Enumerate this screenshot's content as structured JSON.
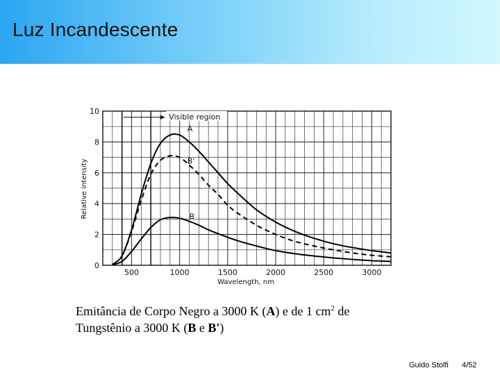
{
  "header": {
    "title": "Luz Incandescente",
    "gradient_colors": [
      "#2aa6f0",
      "#6fcaf8",
      "#b6ecfc",
      "#d2f7fd"
    ]
  },
  "chart_data": {
    "type": "line",
    "xlabel": "Wavelength, nm",
    "ylabel": "Relative intensity",
    "xlim": [
      200,
      3200
    ],
    "ylim": [
      0,
      10
    ],
    "x_ticks": [
      500,
      1000,
      1500,
      2000,
      2500,
      3000
    ],
    "x_tick_labels": [
      "500",
      "1000",
      "1500",
      "2000",
      "2500",
      "3000"
    ],
    "y_ticks": [
      0,
      2,
      4,
      6,
      8,
      10
    ],
    "y_tick_labels": [
      "0",
      "2",
      "4",
      "6",
      "8",
      "10"
    ],
    "grid": true,
    "annotation": {
      "label": "Visible region",
      "x_range": [
        400,
        700
      ],
      "y": 9.6
    },
    "series": [
      {
        "name": "A",
        "style": "solid",
        "label_at": [
          1080,
          8.7
        ],
        "x": [
          300,
          400,
          500,
          600,
          700,
          800,
          900,
          1000,
          1100,
          1200,
          1300,
          1400,
          1500,
          1600,
          1800,
          2000,
          2200,
          2400,
          2600,
          2800,
          3000,
          3200
        ],
        "y": [
          0.05,
          0.6,
          2.3,
          4.6,
          6.6,
          7.9,
          8.45,
          8.45,
          8.0,
          7.4,
          6.7,
          6.0,
          5.3,
          4.7,
          3.6,
          2.8,
          2.2,
          1.75,
          1.4,
          1.15,
          0.95,
          0.8
        ]
      },
      {
        "name": "B'",
        "style": "dashed",
        "label_at": [
          1080,
          6.6
        ],
        "x": [
          300,
          400,
          500,
          600,
          700,
          800,
          900,
          1000,
          1100,
          1200,
          1300,
          1400,
          1500,
          1600,
          1800,
          2000,
          2200,
          2400,
          2600,
          2800,
          3000,
          3200
        ],
        "y": [
          0.05,
          0.6,
          2.2,
          4.2,
          5.9,
          6.8,
          7.1,
          7.0,
          6.5,
          5.9,
          5.2,
          4.6,
          3.9,
          3.4,
          2.6,
          2.0,
          1.55,
          1.25,
          1.0,
          0.8,
          0.65,
          0.55
        ]
      },
      {
        "name": "B",
        "style": "solid",
        "label_at": [
          1100,
          3.0
        ],
        "x": [
          300,
          400,
          500,
          600,
          700,
          800,
          900,
          1000,
          1100,
          1200,
          1300,
          1400,
          1600,
          1800,
          2000,
          2200,
          2400,
          2600,
          2800,
          3000,
          3200
        ],
        "y": [
          0.02,
          0.25,
          0.9,
          1.7,
          2.45,
          2.95,
          3.1,
          3.05,
          2.85,
          2.6,
          2.3,
          2.05,
          1.6,
          1.25,
          0.95,
          0.75,
          0.6,
          0.48,
          0.38,
          0.3,
          0.25
        ]
      }
    ]
  },
  "caption": {
    "line1_pre": "Emitância de Corpo Negro a 3000 K (",
    "line1_a": "A",
    "line1_mid": ") e de 1 cm",
    "line1_sup": "2",
    "line1_post": " de",
    "line2_pre": "Tungstênio a 3000 K (",
    "line2_b": "B",
    "line2_e": " e ",
    "line2_bprime": "B'",
    "line2_post": ")"
  },
  "footer": {
    "author": "Guido Stolfi",
    "page": "4/52"
  }
}
